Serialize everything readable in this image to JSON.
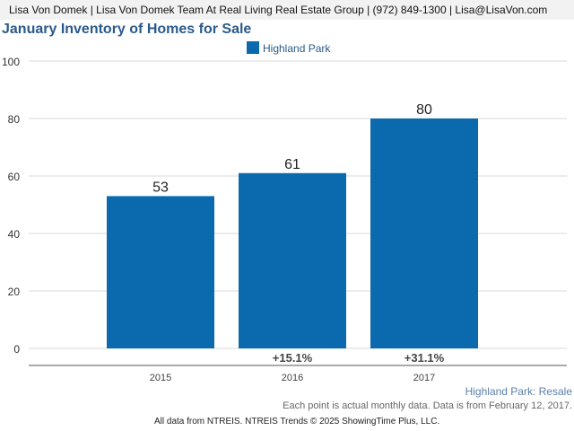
{
  "header": {
    "text": "Lisa Von Domek | Lisa Von Domek Team At Real Living Real Estate Group | (972) 849-1300 | Lisa@LisaVon.com"
  },
  "chart_data": {
    "type": "bar",
    "title": "January Inventory of Homes for Sale",
    "categories": [
      "2015",
      "2016",
      "2017"
    ],
    "series": [
      {
        "name": "Highland Park",
        "values": [
          53,
          61,
          80
        ],
        "color": "#0a6aad"
      }
    ],
    "value_labels": [
      "53",
      "61",
      "80"
    ],
    "change_labels": [
      "",
      "+15.1%",
      "+31.1%"
    ],
    "yticks": [
      0,
      20,
      40,
      60,
      80,
      100
    ],
    "ylim": [
      0,
      100
    ],
    "grid": true,
    "legend_position": "top-center",
    "subtitle": "Highland Park: Resale"
  },
  "footer": {
    "note": "Each point is actual monthly data. Data is from February 12, 2017.",
    "source": "All data from NTREIS. NTREIS Trends © 2025 ShowingTime Plus, LLC."
  }
}
